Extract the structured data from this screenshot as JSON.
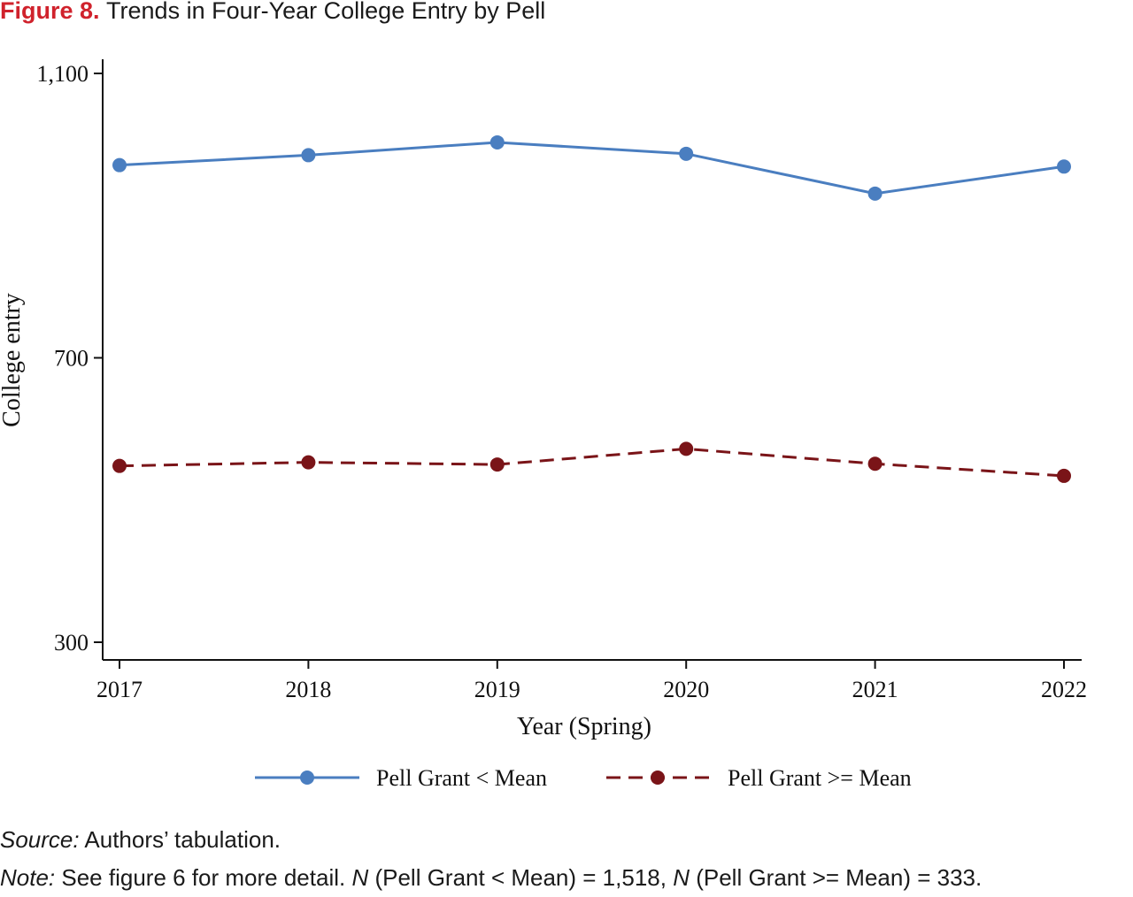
{
  "figure": {
    "label": "Figure 8.",
    "title": "Trends in Four-Year College Entry by Pell"
  },
  "chart_data": {
    "type": "line",
    "x": [
      "2017",
      "2018",
      "2019",
      "2020",
      "2021",
      "2022"
    ],
    "xlabel": "Year (Spring)",
    "ylabel": "College entry",
    "ylim": [
      300,
      1100
    ],
    "yticks": [
      {
        "value": 300,
        "label": "300"
      },
      {
        "value": 700,
        "label": "700"
      },
      {
        "value": 1100,
        "label": "1,100"
      }
    ],
    "grid": false,
    "legend_position": "bottom",
    "series": [
      {
        "name": "Pell Grant < Mean",
        "values": [
          971,
          985,
          1003,
          987,
          931,
          969
        ],
        "color": "#4a7ec0",
        "dash": "solid",
        "marker": "circle"
      },
      {
        "name": "Pell Grant >= Mean",
        "values": [
          548,
          553,
          550,
          572,
          551,
          534
        ],
        "color": "#7a1418",
        "dash": "dashed",
        "marker": "circle"
      }
    ]
  },
  "source": {
    "label": "Source:",
    "text": " Authors’ tabulation."
  },
  "note": {
    "label": "Note:",
    "text1": " See figure 6 for more detail. ",
    "n1": "N",
    "text2": " (Pell Grant < Mean) = 1,518, ",
    "n2": "N",
    "text3": " (Pell Grant >= Mean) = 333."
  }
}
